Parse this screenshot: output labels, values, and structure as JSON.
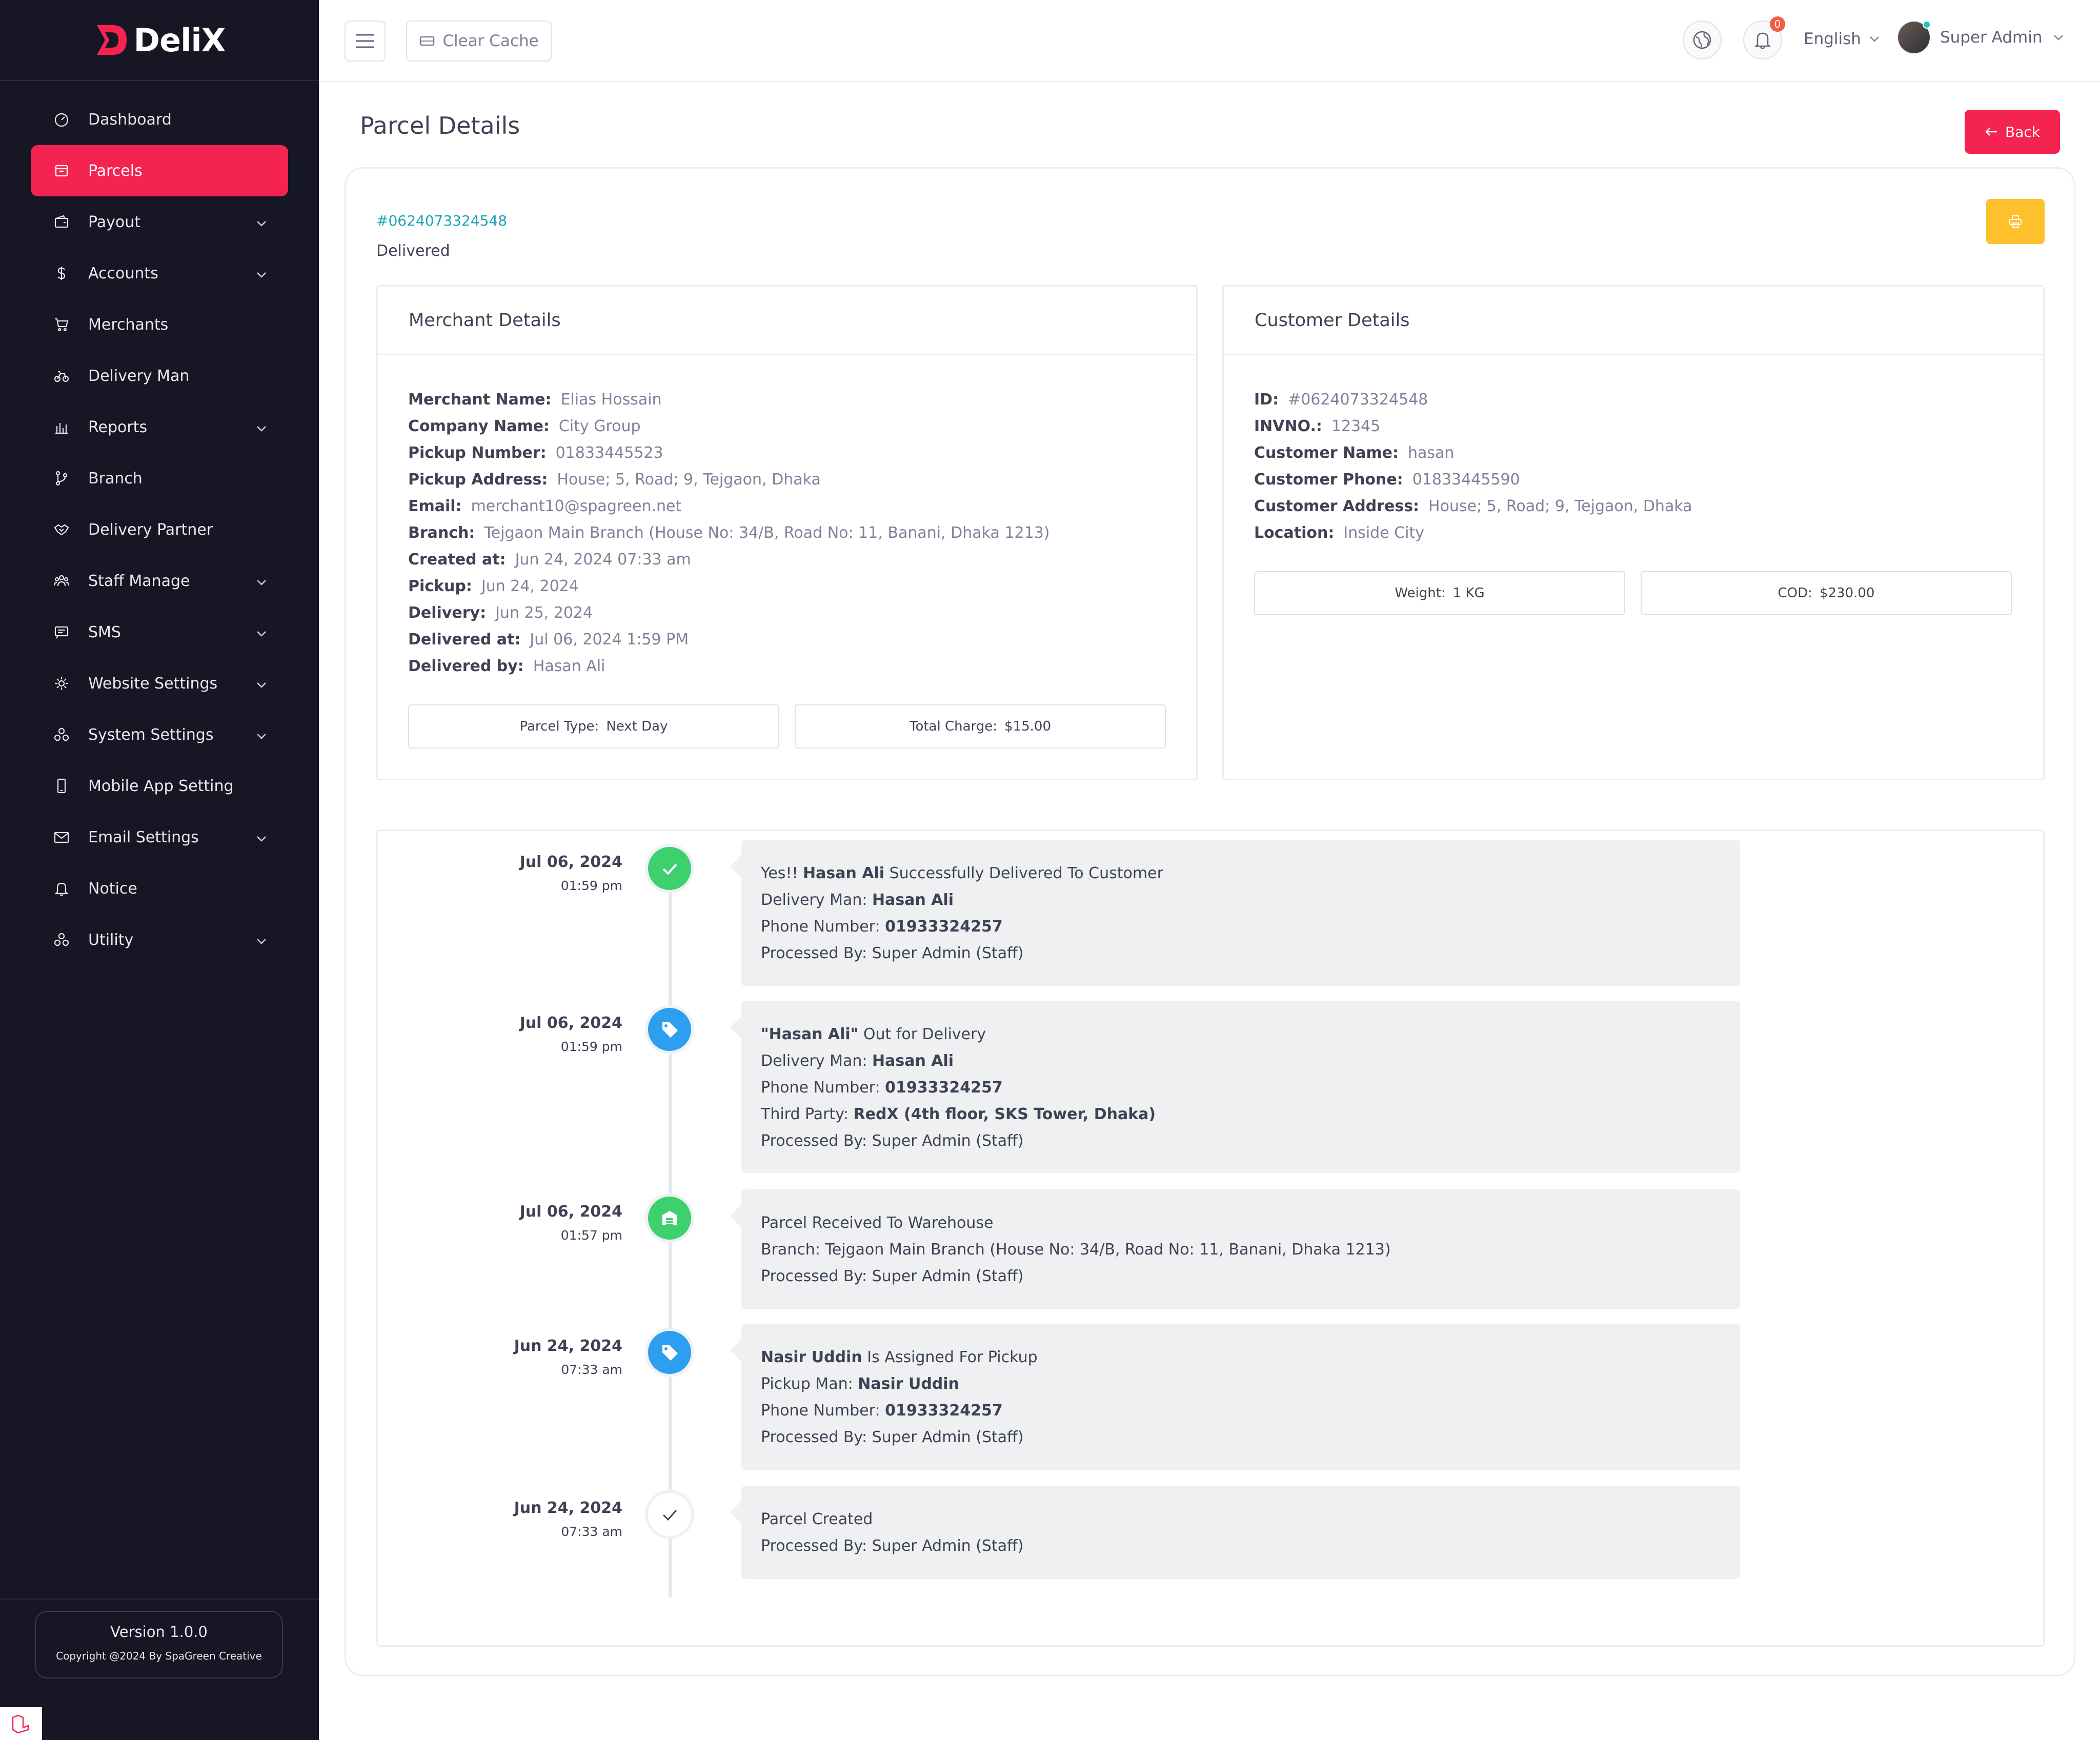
{
  "brand": {
    "name": "DeliX"
  },
  "sidebar": {
    "items": [
      {
        "label": "Dashboard",
        "icon": "gauge-icon",
        "chevron": false,
        "active": false
      },
      {
        "label": "Parcels",
        "icon": "box-icon",
        "chevron": false,
        "active": true
      },
      {
        "label": "Payout",
        "icon": "wallet-icon",
        "chevron": true,
        "active": false
      },
      {
        "label": "Accounts",
        "icon": "dollar-icon",
        "chevron": true,
        "active": false
      },
      {
        "label": "Merchants",
        "icon": "cart-icon",
        "chevron": false,
        "active": false
      },
      {
        "label": "Delivery Man",
        "icon": "bicycle-icon",
        "chevron": false,
        "active": false
      },
      {
        "label": "Reports",
        "icon": "bar-chart-icon",
        "chevron": true,
        "active": false
      },
      {
        "label": "Branch",
        "icon": "branch-icon",
        "chevron": false,
        "active": false
      },
      {
        "label": "Delivery Partner",
        "icon": "handshake-icon",
        "chevron": false,
        "active": false
      },
      {
        "label": "Staff Manage",
        "icon": "users-icon",
        "chevron": true,
        "active": false
      },
      {
        "label": "SMS",
        "icon": "message-icon",
        "chevron": true,
        "active": false
      },
      {
        "label": "Website Settings",
        "icon": "gear-icon",
        "chevron": true,
        "active": false
      },
      {
        "label": "System Settings",
        "icon": "cogs-icon",
        "chevron": true,
        "active": false
      },
      {
        "label": "Mobile App Setting",
        "icon": "mobile-icon",
        "chevron": false,
        "active": false
      },
      {
        "label": "Email Settings",
        "icon": "mail-icon",
        "chevron": true,
        "active": false
      },
      {
        "label": "Notice",
        "icon": "bell-icon",
        "chevron": false,
        "active": false
      },
      {
        "label": "Utility",
        "icon": "cogs-icon",
        "chevron": true,
        "active": false
      }
    ],
    "version_label": "Version  1.0.0",
    "copyright": "Copyright @2024 By SpaGreen Creative"
  },
  "topbar": {
    "clear_cache": "Clear Cache",
    "notification_count": "0",
    "language": "English",
    "user_name": "Super Admin"
  },
  "page": {
    "title": "Parcel Details",
    "back_label": "Back",
    "parcel_id": "#0624073324548",
    "status": "Delivered"
  },
  "merchant": {
    "heading": "Merchant Details",
    "rows": [
      {
        "label": "Merchant Name:",
        "value": "Elias Hossain"
      },
      {
        "label": "Company Name:",
        "value": "City Group"
      },
      {
        "label": "Pickup Number:",
        "value": "01833445523"
      },
      {
        "label": "Pickup Address:",
        "value": "House; 5, Road; 9, Tejgaon, Dhaka"
      },
      {
        "label": "Email:",
        "value": "merchant10@spagreen.net"
      },
      {
        "label": "Branch:",
        "value": "Tejgaon Main Branch (House No: 34/B, Road No: 11, Banani, Dhaka 1213)"
      },
      {
        "label": "Created at:",
        "value": "Jun 24, 2024 07:33 am"
      },
      {
        "label": "Pickup:",
        "value": "Jun 24, 2024"
      },
      {
        "label": "Delivery:",
        "value": "Jun 25, 2024"
      },
      {
        "label": "Delivered at:",
        "value": "Jul 06, 2024 1:59 PM"
      },
      {
        "label": "Delivered by:",
        "value": "Hasan Ali"
      }
    ],
    "parcel_type_label": "Parcel Type:",
    "parcel_type_value": "Next Day",
    "total_charge_label": "Total Charge:",
    "total_charge_value": "$15.00"
  },
  "customer": {
    "heading": "Customer Details",
    "rows": [
      {
        "label": "ID:",
        "value": "#0624073324548"
      },
      {
        "label": "INVNO.:",
        "value": "12345"
      },
      {
        "label": "Customer Name:",
        "value": "hasan"
      },
      {
        "label": "Customer Phone:",
        "value": "01833445590"
      },
      {
        "label": "Customer Address:",
        "value": "House; 5, Road; 9, Tejgaon, Dhaka"
      },
      {
        "label": "Location:",
        "value": "Inside City"
      }
    ],
    "weight_label": "Weight:",
    "weight_value": "1 KG",
    "cod_label": "COD:",
    "cod_value": "$230.00"
  },
  "timeline": [
    {
      "date": "Jul 06, 2024",
      "time": "01:59 pm",
      "icon": "check-circle-icon",
      "color": "#3ecf6e",
      "lines": [
        [
          {
            "t": "Yes!! "
          },
          {
            "t": "Hasan Ali",
            "b": true
          },
          {
            "t": " Successfully Delivered To Customer"
          }
        ],
        [
          {
            "t": "Delivery Man: "
          },
          {
            "t": "Hasan Ali",
            "b": true
          }
        ],
        [
          {
            "t": "Phone Number: "
          },
          {
            "t": "01933324257",
            "b": true
          }
        ],
        [
          {
            "t": "Processed By: Super Admin (Staff)"
          }
        ]
      ]
    },
    {
      "date": "Jul 06, 2024",
      "time": "01:59 pm",
      "icon": "tag-icon",
      "color": "#2c9fee",
      "lines": [
        [
          {
            "t": "\"Hasan Ali\"",
            "b": true
          },
          {
            "t": " Out for Delivery"
          }
        ],
        [
          {
            "t": "Delivery Man: "
          },
          {
            "t": "Hasan Ali",
            "b": true
          }
        ],
        [
          {
            "t": "Phone Number: "
          },
          {
            "t": "01933324257",
            "b": true
          }
        ],
        [
          {
            "t": "Third Party: "
          },
          {
            "t": "RedX (4th floor, SKS Tower, Dhaka)",
            "b": true
          }
        ],
        [
          {
            "t": "Processed By: Super Admin (Staff)"
          }
        ]
      ]
    },
    {
      "date": "Jul 06, 2024",
      "time": "01:57 pm",
      "icon": "warehouse-icon",
      "color": "#3ecf6e",
      "lines": [
        [
          {
            "t": "Parcel Received To Warehouse"
          }
        ],
        [
          {
            "t": "Branch: Tejgaon Main Branch (House No: 34/B, Road No: 11, Banani, Dhaka 1213)"
          }
        ],
        [
          {
            "t": "Processed By: Super Admin (Staff)"
          }
        ]
      ]
    },
    {
      "date": "Jun 24, 2024",
      "time": "07:33 am",
      "icon": "tag-icon",
      "color": "#2c9fee",
      "lines": [
        [
          {
            "t": "Nasir Uddin",
            "b": true
          },
          {
            "t": " Is Assigned For Pickup"
          }
        ],
        [
          {
            "t": "Pickup Man: "
          },
          {
            "t": "Nasir Uddin",
            "b": true
          }
        ],
        [
          {
            "t": "Phone Number: "
          },
          {
            "t": "01933324257",
            "b": true
          }
        ],
        [
          {
            "t": "Processed By: Super Admin (Staff)"
          }
        ]
      ]
    },
    {
      "date": "Jun 24, 2024",
      "time": "07:33 am",
      "icon": "check-icon",
      "color": "#ffffff",
      "lines": [
        [
          {
            "t": "Parcel Created"
          }
        ],
        [
          {
            "t": "Processed By: Super Admin (Staff)"
          }
        ]
      ]
    }
  ]
}
